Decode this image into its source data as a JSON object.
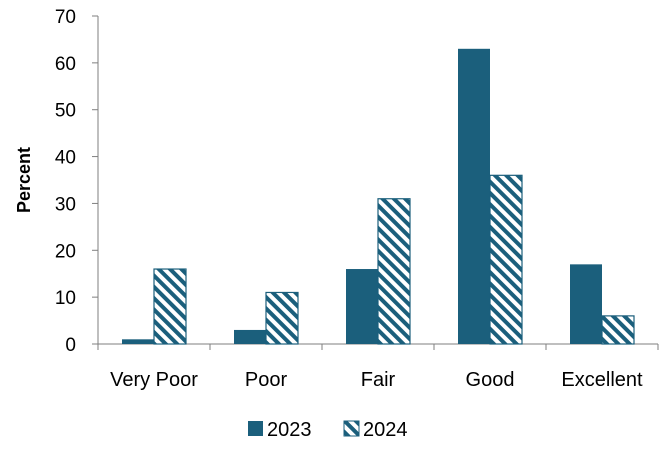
{
  "chart_data": {
    "type": "bar",
    "title": "",
    "xlabel": "",
    "ylabel": "Percent",
    "ylim": [
      0,
      70
    ],
    "yticks": [
      0,
      10,
      20,
      30,
      40,
      50,
      60,
      70
    ],
    "categories": [
      "Very Poor",
      "Poor",
      "Fair",
      "Good",
      "Excellent"
    ],
    "series": [
      {
        "name": "2023",
        "values": [
          1,
          3,
          16,
          63,
          17
        ],
        "fill": "solid",
        "color": "#1b5f7c"
      },
      {
        "name": "2024",
        "values": [
          16,
          11,
          31,
          36,
          6
        ],
        "fill": "diagonal-hatch",
        "color": "#1b5f7c"
      }
    ],
    "grid": false,
    "legend": "bottom-center"
  }
}
